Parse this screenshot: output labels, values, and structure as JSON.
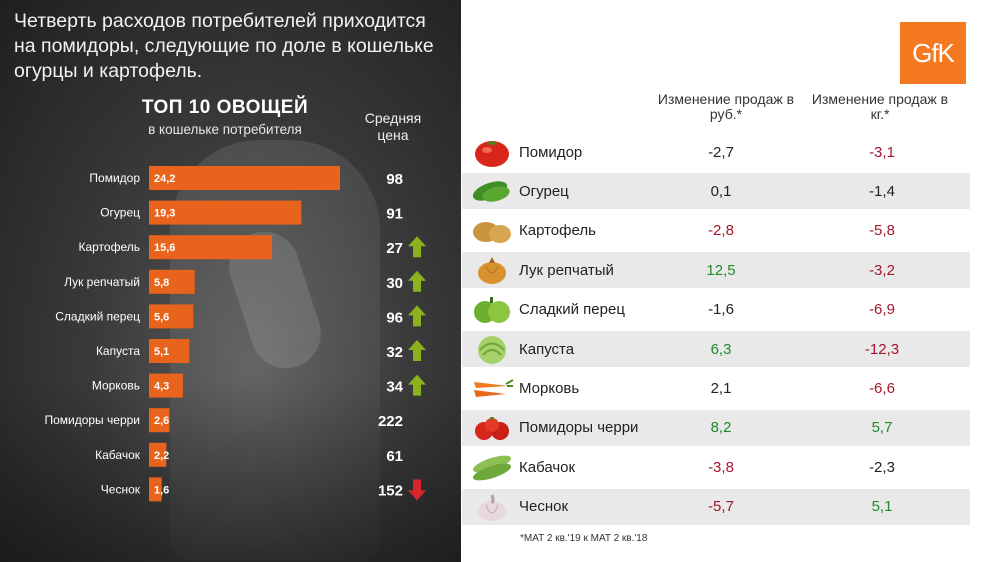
{
  "headline": "Четверть расходов потребителей приходится на помидоры, следующие по доле в кошельке огурцы и картофель.",
  "logo_text": "GfK",
  "price_header": "Средняя цена",
  "table_headers": {
    "rub": "Изменение продаж в руб.*",
    "kg": "Изменение продаж в кг.*"
  },
  "footnote": "*MAT 2 кв.'19 к MAT 2 кв.'18",
  "colors": {
    "bar": "#e8641c",
    "arrow_up": "#8ab21f",
    "arrow_down": "#d9262b",
    "neg": "#a3172a",
    "pos": "#1e8a2a",
    "neutral": "#222222",
    "logo": "#f47920"
  },
  "chart_data": {
    "type": "bar",
    "orientation": "horizontal",
    "title": "ТОП 10 ОВОЩЕЙ",
    "subtitle": "в кошельке потребителя",
    "categories": [
      "Помидор",
      "Огурец",
      "Картофель",
      "Лук репчатый",
      "Сладкий перец",
      "Капуста",
      "Морковь",
      "Помидоры черри",
      "Кабачок",
      "Чеснок"
    ],
    "values": [
      24.2,
      19.3,
      15.6,
      5.8,
      5.6,
      5.1,
      4.3,
      2.6,
      2.2,
      1.6
    ],
    "value_labels": [
      "24,2",
      "19,3",
      "15,6",
      "5,8",
      "5,6",
      "5,1",
      "4,3",
      "2,6",
      "2,2",
      "1,6"
    ],
    "xlim": [
      0,
      24.2
    ],
    "prices": [
      "98",
      "91",
      "27",
      "30",
      "96",
      "32",
      "34",
      "222",
      "61",
      "152"
    ],
    "price_trend": [
      "none",
      "none",
      "up",
      "up",
      "up",
      "up",
      "up",
      "none",
      "none",
      "down"
    ]
  },
  "table": [
    {
      "name": "Помидор",
      "icon": "tomato-icon",
      "rub": "-2,7",
      "rub_color": "neutral",
      "kg": "-3,1",
      "kg_color": "neg"
    },
    {
      "name": "Огурец",
      "icon": "cucumber-icon",
      "rub": "0,1",
      "rub_color": "neutral",
      "kg": "-1,4",
      "kg_color": "neutral"
    },
    {
      "name": "Картофель",
      "icon": "potato-icon",
      "rub": "-2,8",
      "rub_color": "neg",
      "kg": "-5,8",
      "kg_color": "neg"
    },
    {
      "name": "Лук репчатый",
      "icon": "onion-icon",
      "rub": "12,5",
      "rub_color": "pos",
      "kg": "-3,2",
      "kg_color": "neg"
    },
    {
      "name": "Сладкий перец",
      "icon": "pepper-icon",
      "rub": "-1,6",
      "rub_color": "neutral",
      "kg": "-6,9",
      "kg_color": "neg"
    },
    {
      "name": "Капуста",
      "icon": "cabbage-icon",
      "rub": "6,3",
      "rub_color": "pos",
      "kg": "-12,3",
      "kg_color": "neg"
    },
    {
      "name": "Морковь",
      "icon": "carrot-icon",
      "rub": "2,1",
      "rub_color": "neutral",
      "kg": "-6,6",
      "kg_color": "neg"
    },
    {
      "name": "Помидоры черри",
      "icon": "cherry-tomato-icon",
      "rub": "8,2",
      "rub_color": "pos",
      "kg": "5,7",
      "kg_color": "pos"
    },
    {
      "name": "Кабачок",
      "icon": "zucchini-icon",
      "rub": "-3,8",
      "rub_color": "neg",
      "kg": "-2,3",
      "kg_color": "neutral"
    },
    {
      "name": "Чеснок",
      "icon": "garlic-icon",
      "rub": "-5,7",
      "rub_color": "neg",
      "kg": "5,1",
      "kg_color": "pos"
    }
  ]
}
